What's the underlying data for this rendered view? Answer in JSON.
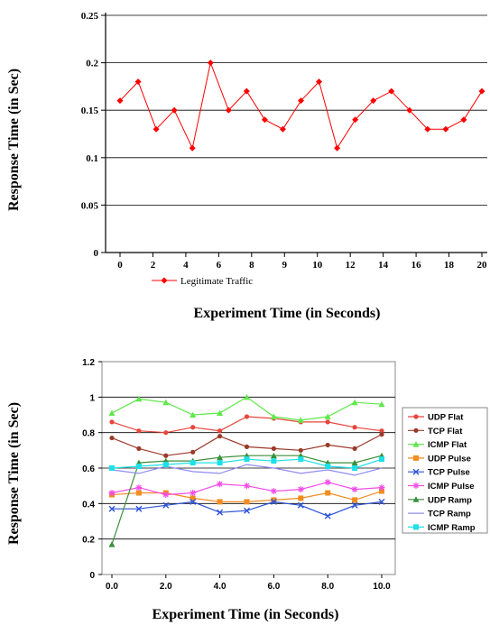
{
  "chart_data": [
    {
      "type": "line",
      "xlabel": "Experiment Time (in Seconds)",
      "ylabel": "Response Time (in Sec)",
      "ylim": [
        0,
        0.25
      ],
      "yticks": [
        "0",
        "0.05",
        "0.1",
        "0.15",
        "0.2",
        "0.25"
      ],
      "xticks": [
        "0",
        "2",
        "4",
        "6",
        "8",
        "9",
        "10",
        "12",
        "14",
        "16",
        "18",
        "20"
      ],
      "grid": "horizontal",
      "legend_position": "bottom-left",
      "series": [
        {
          "name": "Legitimate Traffic",
          "color": "#ff0000",
          "marker": "diamond",
          "x": [
            0,
            1,
            2,
            3,
            4,
            5,
            6,
            7,
            8,
            9,
            10,
            11,
            12,
            13,
            14,
            15,
            16,
            17,
            18,
            19,
            20
          ],
          "values": [
            0.16,
            0.18,
            0.13,
            0.15,
            0.11,
            0.2,
            0.15,
            0.17,
            0.14,
            0.13,
            0.16,
            0.18,
            0.11,
            0.14,
            0.16,
            0.17,
            0.15,
            0.13,
            0.13,
            0.14,
            0.17
          ]
        }
      ]
    },
    {
      "type": "line",
      "xlabel": "Experiment Time (in Seconds)",
      "ylabel": "Response Time (in Sec)",
      "ylim": [
        0,
        1.2
      ],
      "xlim": [
        0,
        10
      ],
      "yticks": [
        "0",
        "0.2",
        "0.4",
        "0.6",
        "0.8",
        "1",
        "1.2"
      ],
      "xticks": [
        "0.0",
        "2.0",
        "4.0",
        "6.0",
        "8.0",
        "10.0"
      ],
      "grid": "horizontal",
      "legend_position": "right",
      "x": [
        0,
        1,
        2,
        3,
        4,
        5,
        6,
        7,
        8,
        9,
        10
      ],
      "series": [
        {
          "name": "UDP Flat",
          "color": "#e8453c",
          "marker": "circle",
          "values": [
            0.86,
            0.81,
            0.8,
            0.83,
            0.81,
            0.89,
            0.88,
            0.86,
            0.86,
            0.83,
            0.81
          ]
        },
        {
          "name": "TCP Flat",
          "color": "#9b3a2a",
          "marker": "circle",
          "values": [
            0.77,
            0.71,
            0.67,
            0.69,
            0.78,
            0.72,
            0.71,
            0.7,
            0.73,
            0.71,
            0.79
          ]
        },
        {
          "name": "ICMP Flat",
          "color": "#5fe84a",
          "marker": "triangle",
          "values": [
            0.91,
            0.99,
            0.97,
            0.9,
            0.91,
            1.0,
            0.89,
            0.87,
            0.89,
            0.97,
            0.96
          ]
        },
        {
          "name": "UDP Pulse",
          "color": "#f28c1f",
          "marker": "square",
          "values": [
            0.45,
            0.46,
            0.46,
            0.43,
            0.41,
            0.41,
            0.42,
            0.43,
            0.46,
            0.42,
            0.47
          ]
        },
        {
          "name": "TCP Pulse",
          "color": "#2e54d6",
          "marker": "cross",
          "values": [
            0.37,
            0.37,
            0.39,
            0.41,
            0.35,
            0.36,
            0.41,
            0.39,
            0.33,
            0.39,
            0.41
          ]
        },
        {
          "name": "ICMP Pulse",
          "color": "#f24de8",
          "marker": "star",
          "values": [
            0.46,
            0.49,
            0.45,
            0.46,
            0.51,
            0.5,
            0.47,
            0.48,
            0.52,
            0.48,
            0.49
          ]
        },
        {
          "name": "UDP Ramp",
          "color": "#3a8f3a",
          "marker": "triangle",
          "values": [
            0.17,
            0.63,
            0.64,
            0.64,
            0.66,
            0.67,
            0.67,
            0.67,
            0.63,
            0.63,
            0.67
          ]
        },
        {
          "name": "TCP Ramp",
          "color": "#8f8cf0",
          "marker": "none",
          "values": [
            0.59,
            0.57,
            0.61,
            0.58,
            0.57,
            0.62,
            0.6,
            0.57,
            0.59,
            0.56,
            0.6
          ]
        },
        {
          "name": "ICMP Ramp",
          "color": "#1ee0e8",
          "marker": "square",
          "values": [
            0.6,
            0.61,
            0.62,
            0.63,
            0.63,
            0.65,
            0.64,
            0.65,
            0.61,
            0.6,
            0.65
          ]
        }
      ]
    }
  ]
}
